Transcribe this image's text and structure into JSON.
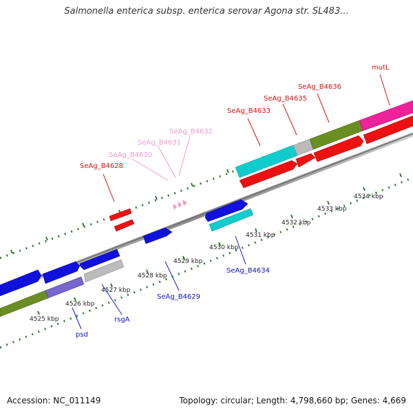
{
  "title": "Salmonella enterica subsp. enterica serovar Agona str. SL483...",
  "footer": {
    "accession": "Accession: NC_011149",
    "summary": "Topology: circular; Length: 4,798,660 bp; Genes: 4,669"
  },
  "scale_labels": [
    "4525 kbp",
    "4526 kbp",
    "4527 kbp",
    "4528 kbp",
    "4529 kbp",
    "4530 kbp",
    "4531 kbp",
    "4532 kbp",
    "4533 kbp",
    "4534 kbp"
  ],
  "gene_labels": {
    "psd": "psd",
    "rsgA": "rsgA",
    "b4629": "SeAg_B4629",
    "b4634": "SeAg_B4634",
    "b4628": "SeAg_B4628",
    "b4630": "SeAg_B4630",
    "b4631": "SeAg_B4631",
    "b4632": "SeAg_B4632",
    "b4633": "SeAg_B4633",
    "b4635": "SeAg_B4635",
    "b4636": "SeAg_B4636",
    "mutL": "mutL"
  },
  "colors": {
    "red": "#ee1111",
    "blue": "#1111dd",
    "cyan": "#11cccc",
    "olive": "#6b8e23",
    "pink": "#ee2299",
    "gray": "#bbbbbb",
    "lavender": "#7766cc",
    "light_pink": "#ee99cc",
    "tick_green": "#2e7d32"
  }
}
